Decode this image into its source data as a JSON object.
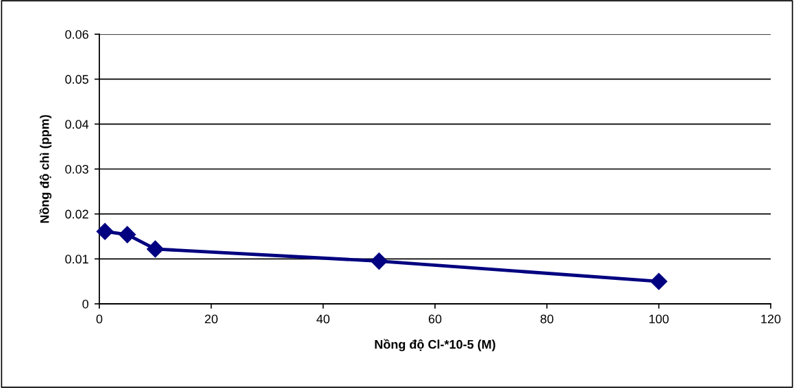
{
  "chart_data": {
    "type": "line",
    "xlabel": "Nồng độ Cl-*10-5 (M)",
    "ylabel": "Nồng độ chì (ppm)",
    "x": [
      1,
      5,
      10,
      50,
      100
    ],
    "series": [
      {
        "color": "#000080",
        "values": [
          0.0161,
          0.0154,
          0.0122,
          0.0095,
          0.005
        ]
      }
    ],
    "xlim": [
      0,
      120
    ],
    "xticks": [
      0,
      20,
      40,
      60,
      80,
      100,
      120
    ],
    "ylim": [
      0,
      0.06
    ],
    "yticks": [
      0,
      0.01,
      0.02,
      0.03,
      0.04,
      0.05,
      0.06
    ],
    "grid": "y",
    "marker": "diamond",
    "line_style": "solid"
  }
}
